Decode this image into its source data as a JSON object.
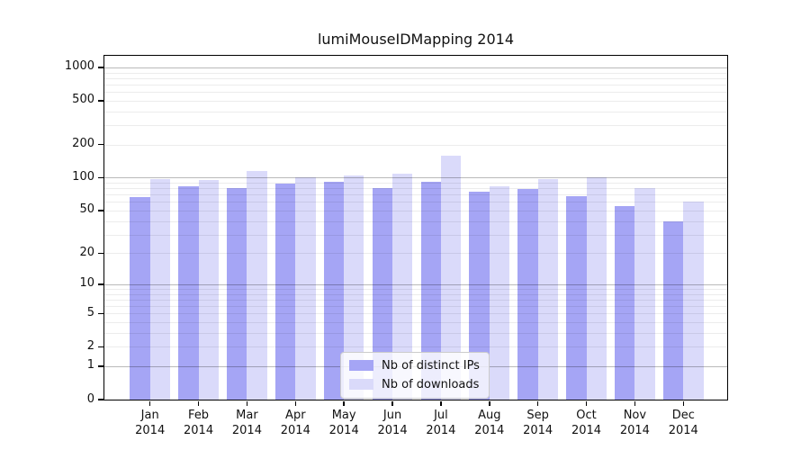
{
  "chart_data": {
    "type": "bar",
    "title": "lumiMouseIDMapping 2014",
    "categories": [
      "Jan",
      "Feb",
      "Mar",
      "Apr",
      "May",
      "Jun",
      "Jul",
      "Aug",
      "Sep",
      "Oct",
      "Nov",
      "Dec"
    ],
    "x_tick_second_line": "2014",
    "series": [
      {
        "name": "Nb of distinct IPs",
        "color": "#a5a5f5",
        "values": [
          66,
          84,
          81,
          88,
          91,
          80,
          92,
          75,
          79,
          68,
          55,
          40
        ]
      },
      {
        "name": "Nb of downloads",
        "color": "#dadafa",
        "values": [
          97,
          95,
          115,
          100,
          105,
          108,
          160,
          84,
          98,
          100,
          81,
          60
        ]
      }
    ],
    "y_ticks": [
      0,
      1,
      2,
      5,
      10,
      20,
      50,
      100,
      200,
      500,
      1000
    ],
    "y_scale": "log10(value+1)",
    "ylim": [
      0,
      1274
    ],
    "legend_position": "lower center",
    "grid": "horizontal log gridlines, major at powers of 10, minor between",
    "colors": {
      "major_gridline": "rgba(0,0,0,0.27)",
      "minor_gridline": "rgba(0,0,0,0.075)",
      "axis_spine": "#000000",
      "legend_border": "#cccccc",
      "legend_background": "rgba(255,255,255,0.8)"
    }
  }
}
